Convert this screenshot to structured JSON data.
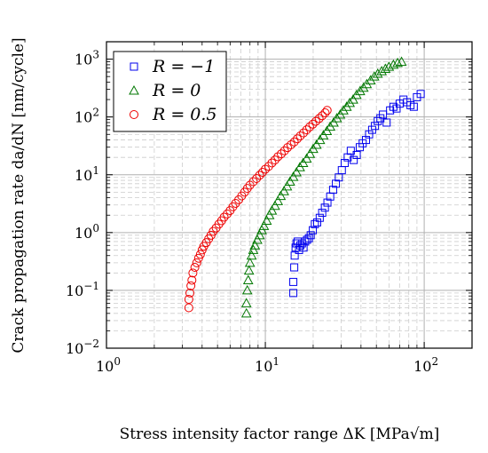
{
  "chart_data": {
    "type": "scatter",
    "title": "",
    "xlabel": "Stress intensity factor range ΔK [MPa√m]",
    "ylabel": "Crack propagation rate da/dN [nm/cycle]",
    "xscale": "log",
    "yscale": "log",
    "xlim": [
      1,
      200
    ],
    "ylim": [
      0.01,
      2000
    ],
    "grid": true,
    "legend_position": "top-left",
    "x_ticks": [
      {
        "value": 1,
        "base": "10",
        "exp": "0"
      },
      {
        "value": 10,
        "base": "10",
        "exp": "1"
      },
      {
        "value": 100,
        "base": "10",
        "exp": "2"
      }
    ],
    "y_ticks": [
      {
        "value": 0.01,
        "base": "10",
        "exp": "−2"
      },
      {
        "value": 0.1,
        "base": "10",
        "exp": "−1"
      },
      {
        "value": 1,
        "base": "10",
        "exp": "0"
      },
      {
        "value": 10,
        "base": "10",
        "exp": "1"
      },
      {
        "value": 100,
        "base": "10",
        "exp": "2"
      },
      {
        "value": 1000,
        "base": "10",
        "exp": "3"
      }
    ],
    "series": [
      {
        "name": "R = −1",
        "marker": "square",
        "color": "#0000ee",
        "x": [
          15.0,
          15.0,
          15.2,
          15.3,
          15.5,
          15.7,
          16.0,
          16.3,
          16.6,
          17.0,
          17.4,
          17.8,
          18.3,
          18.8,
          19.3,
          19.9,
          20.5,
          21.2,
          22.0,
          22.8,
          23.7,
          24.6,
          25.6,
          26.7,
          27.8,
          29.0,
          30.3,
          31.6,
          33.0,
          34.5,
          36.0,
          37.6,
          39.3,
          41.0,
          43.0,
          45.0,
          47.0,
          49.0,
          51.0,
          53.0,
          55.0,
          58.0,
          61.0,
          64.0,
          67.0,
          70.0,
          74.0,
          78.0,
          82.0,
          86.0,
          90.0,
          95.0
        ],
        "y": [
          0.09,
          0.14,
          0.25,
          0.4,
          0.55,
          0.65,
          0.7,
          0.5,
          0.6,
          0.65,
          0.55,
          0.7,
          0.75,
          0.8,
          0.9,
          1.1,
          1.4,
          1.5,
          1.8,
          2.2,
          2.7,
          3.3,
          4.2,
          5.5,
          7.0,
          9.0,
          12.0,
          16.0,
          20.0,
          26.0,
          18.0,
          22.0,
          30.0,
          35.0,
          40.0,
          50.0,
          60.0,
          70.0,
          85.0,
          95.0,
          110.0,
          80.0,
          130.0,
          150.0,
          140.0,
          170.0,
          200.0,
          180.0,
          160.0,
          150.0,
          220.0,
          250.0
        ]
      },
      {
        "name": "R = 0",
        "marker": "triangle",
        "color": "#007700",
        "x": [
          7.6,
          7.6,
          7.7,
          7.8,
          7.9,
          8.0,
          8.2,
          8.4,
          8.6,
          8.9,
          9.2,
          9.5,
          9.8,
          10.2,
          10.6,
          11.0,
          11.5,
          12.0,
          12.5,
          13.1,
          13.7,
          14.3,
          15.0,
          15.7,
          16.5,
          17.3,
          18.2,
          19.1,
          20.0,
          21.0,
          22.1,
          23.2,
          24.4,
          25.6,
          26.9,
          28.2,
          29.6,
          31.0,
          32.5,
          34.0,
          35.7,
          37.5,
          39.5,
          41.5,
          43.5,
          46.0,
          48.5,
          51.0,
          54.0,
          57.0,
          60.0,
          64.0,
          68.0,
          72.0
        ],
        "y": [
          0.04,
          0.06,
          0.1,
          0.15,
          0.22,
          0.3,
          0.4,
          0.5,
          0.6,
          0.75,
          0.9,
          1.1,
          1.3,
          1.6,
          2.0,
          2.4,
          2.9,
          3.5,
          4.3,
          5.2,
          6.3,
          7.6,
          9.2,
          11.0,
          13.5,
          16.0,
          19.0,
          23.0,
          28.0,
          33.0,
          40.0,
          48.0,
          57.0,
          68.0,
          80.0,
          95.0,
          110.0,
          130.0,
          150.0,
          175.0,
          200.0,
          240.0,
          280.0,
          320.0,
          370.0,
          430.0,
          500.0,
          560.0,
          620.0,
          680.0,
          740.0,
          800.0,
          860.0,
          900.0
        ]
      },
      {
        "name": "R = 0.5",
        "marker": "circle",
        "color": "#ee0000",
        "x": [
          3.3,
          3.3,
          3.35,
          3.4,
          3.45,
          3.5,
          3.6,
          3.7,
          3.8,
          3.9,
          4.0,
          4.1,
          4.25,
          4.4,
          4.55,
          4.7,
          4.9,
          5.1,
          5.3,
          5.5,
          5.75,
          6.0,
          6.25,
          6.5,
          6.8,
          7.1,
          7.4,
          7.7,
          8.0,
          8.4,
          8.8,
          9.2,
          9.6,
          10.0,
          10.5,
          11.0,
          11.5,
          12.0,
          12.6,
          13.2,
          13.8,
          14.5,
          15.2,
          15.9,
          16.6,
          17.4,
          18.2,
          19.0,
          19.9,
          20.8,
          21.8,
          22.8,
          23.8,
          24.5
        ],
        "y": [
          0.05,
          0.07,
          0.09,
          0.12,
          0.15,
          0.2,
          0.25,
          0.3,
          0.36,
          0.42,
          0.5,
          0.58,
          0.67,
          0.78,
          0.9,
          1.05,
          1.2,
          1.4,
          1.6,
          1.85,
          2.1,
          2.4,
          2.8,
          3.2,
          3.7,
          4.3,
          5.0,
          5.8,
          6.6,
          7.6,
          8.6,
          9.8,
          11.0,
          12.5,
          14.0,
          16.0,
          18.0,
          20.5,
          23.0,
          26.0,
          29.5,
          33.0,
          37.0,
          42.0,
          47.0,
          53.0,
          60.0,
          67.0,
          75.0,
          84.0,
          94.0,
          105.0,
          118.0,
          130.0
        ]
      }
    ]
  }
}
